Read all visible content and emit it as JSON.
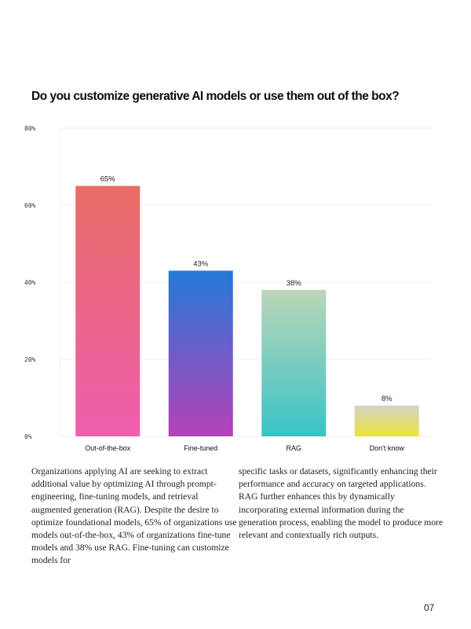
{
  "title": "Do you customize generative AI models or use them out of the box?",
  "chart_data": {
    "type": "bar",
    "title": "Do you customize generative AI models or use them out of the box?",
    "categories": [
      "Out-of-the-box",
      "Fine-tuned",
      "RAG",
      "Don't know"
    ],
    "values": [
      65,
      43,
      38,
      8
    ],
    "data_labels": [
      "65%",
      "43%",
      "38%",
      "8%"
    ],
    "yticks": [
      0,
      20,
      40,
      60,
      80
    ],
    "ytick_labels": [
      "0%",
      "20%",
      "40%",
      "60%",
      "80%"
    ],
    "ylim": [
      0,
      80
    ],
    "xlabel": "",
    "ylabel": "",
    "grid": true,
    "legend": "none",
    "bar_gradients": [
      {
        "top": "#e96d66",
        "bottom": "#ee5fad"
      },
      {
        "top": "#2479d6",
        "bottom": "#b641b8"
      },
      {
        "top": "#bcd6b8",
        "bottom": "#39c3c6"
      },
      {
        "top": "#d3d2c8",
        "bottom": "#ede43a"
      }
    ]
  },
  "body": {
    "left": "Organizations applying AI are seeking to extract additional value by optimizing AI through prompt-engineering, fine-tuning models, and retrieval augmented generation (RAG). Despite the desire to optimize foundational models, 65% of organizations use models out-of-the-box, 43% of organizations fine-tune models and 38% use RAG. Fine-tuning can customize models for",
    "right": "specific tasks or datasets, significantly enhancing their performance and accuracy on targeted applications. RAG further enhances this by dynamically incorporating external information during the generation process, enabling the model to produce more relevant and contextually rich outputs."
  },
  "page_number": "07"
}
